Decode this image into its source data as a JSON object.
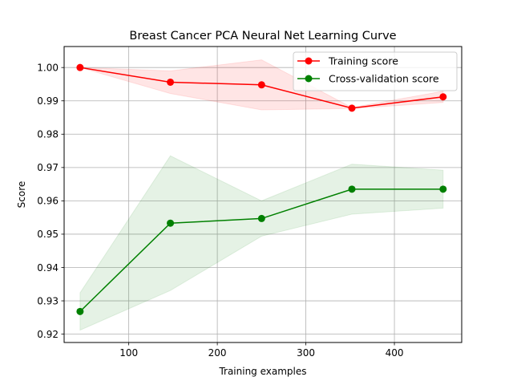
{
  "chart_data": {
    "type": "line",
    "title": "Breast Cancer PCA Neural Net Learning Curve",
    "xlabel": "Training examples",
    "ylabel": "Score",
    "xlim": [
      27,
      476
    ],
    "ylim": [
      0.9175,
      1.0063
    ],
    "xticks": [
      100,
      200,
      300,
      400
    ],
    "yticks": [
      0.92,
      0.93,
      0.94,
      0.95,
      0.96,
      0.97,
      0.98,
      0.99,
      1.0
    ],
    "ytick_labels": [
      "0.92",
      "0.93",
      "0.94",
      "0.95",
      "0.96",
      "0.97",
      "0.98",
      "0.99",
      "1.00"
    ],
    "grid": true,
    "legend_position": "top-right",
    "x": [
      45,
      147,
      250,
      352,
      455
    ],
    "series": [
      {
        "name": "Training score",
        "color": "#ff0000",
        "values": [
          1.0,
          0.9956,
          0.9948,
          0.9878,
          0.9912
        ],
        "band_lower": [
          1.0,
          0.9922,
          0.9873,
          0.9877,
          0.9895
        ],
        "band_upper": [
          1.0,
          0.999,
          1.0023,
          0.988,
          0.9929
        ]
      },
      {
        "name": "Cross-validation score",
        "color": "#008000",
        "values": [
          0.9268,
          0.9533,
          0.9547,
          0.9635,
          0.9635
        ],
        "band_lower": [
          0.9212,
          0.9331,
          0.9494,
          0.956,
          0.9578
        ],
        "band_upper": [
          0.9324,
          0.9735,
          0.96,
          0.971,
          0.9692
        ]
      }
    ]
  }
}
